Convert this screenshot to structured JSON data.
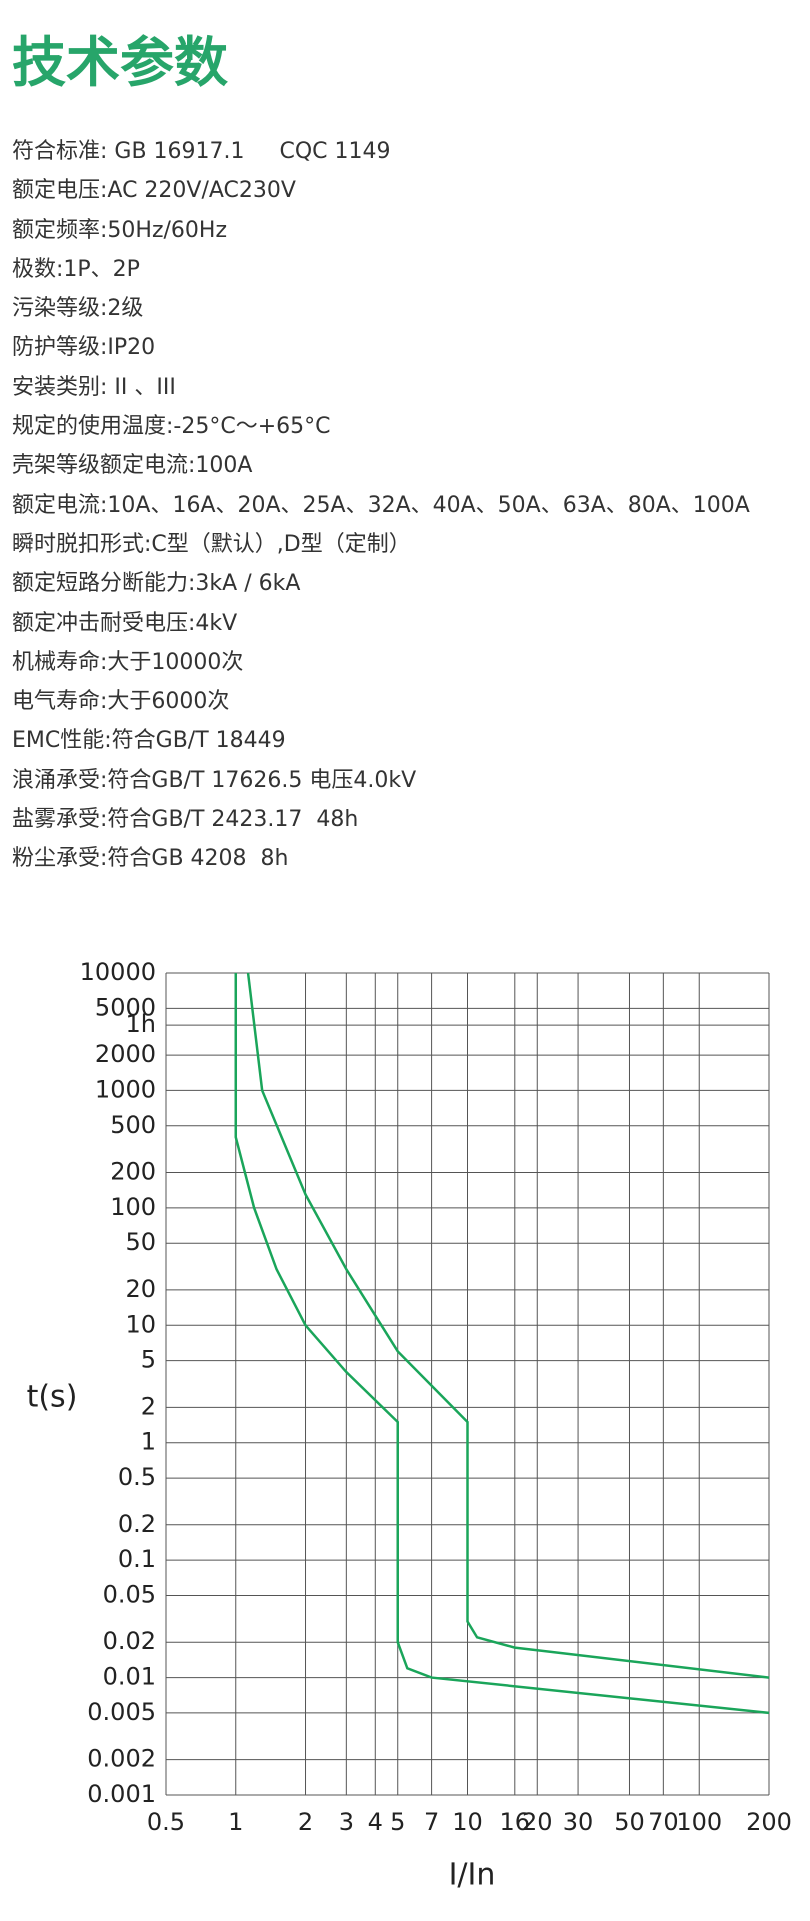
{
  "header": {
    "title": "技术参数"
  },
  "specs": [
    "符合标准: GB 16917.1     CQC 1149",
    "额定电压:AC 220V/AC230V",
    "额定频率:50Hz/60Hz",
    "极数:1P、2P",
    "污染等级:2级",
    "防护等级:IP20",
    "安装类别: II 、III",
    "规定的使用温度:-25°C～+65°C",
    "壳架等级额定电流:100A",
    "额定电流:10A、16A、20A、25A、32A、40A、50A、63A、80A、100A",
    "瞬时脱扣形式:C型（默认）,D型（定制）",
    "额定短路分断能力:3kA / 6kA",
    "额定冲击耐受电压:4kV",
    "机械寿命:大于10000次",
    "电气寿命:大于6000次",
    "EMC性能:符合GB/T 18449",
    "浪涌承受:符合GB/T 17626.5 电压4.0kV",
    "盐雾承受:符合GB/T 2423.17  48h",
    "粉尘承受:符合GB 4208  8h"
  ],
  "chart_data": {
    "type": "line",
    "x_label": "I/In",
    "y_label": "t(s)",
    "xscale": "log",
    "yscale": "log",
    "grid": true,
    "xlim": [
      0.5,
      200
    ],
    "ylim": [
      0.001,
      10000
    ],
    "xticks": [
      0.5,
      1,
      2,
      3,
      4,
      5,
      7,
      10,
      16,
      20,
      30,
      50,
      70,
      100,
      200
    ],
    "yticks": [
      10000,
      5000,
      {
        "value": 3600,
        "label": "1h"
      },
      2000,
      1000,
      500,
      200,
      100,
      50,
      20,
      10,
      5,
      2,
      1,
      0.5,
      0.2,
      0.1,
      0.05,
      0.02,
      0.01,
      0.005,
      0.002,
      0.001
    ],
    "series": [
      {
        "color": "#1aa55a",
        "x": [
          1,
          1,
          1.2,
          1.5,
          2,
          3,
          5,
          5,
          5.5,
          7,
          200
        ],
        "values": [
          10000,
          400,
          100,
          30,
          10,
          4,
          1.5,
          0.02,
          0.012,
          0.01,
          0.005
        ]
      },
      {
        "color": "#1aa55a",
        "x": [
          1.13,
          1.3,
          2,
          3,
          5,
          10,
          10,
          11,
          16,
          200
        ],
        "values": [
          10000,
          1000,
          130,
          30,
          6,
          1.5,
          0.03,
          0.022,
          0.018,
          0.01
        ]
      }
    ]
  }
}
